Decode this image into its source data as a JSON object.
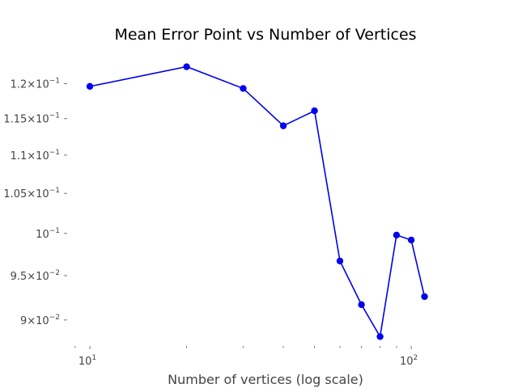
{
  "chart_data": {
    "type": "line",
    "title": "Mean Error Point vs Number of Vertices",
    "xlabel": "Number of vertices (log scale)",
    "ylabel": "",
    "xscale": "log",
    "yscale": "log",
    "xlim": [
      8.5,
      150
    ],
    "ylim": [
      0.0872,
      0.125
    ],
    "grid": false,
    "color": "#0000ee",
    "x": [
      10,
      20,
      30,
      40,
      50,
      60,
      70,
      80,
      90,
      100,
      110
    ],
    "y": [
      0.1196,
      0.1225,
      0.1193,
      0.114,
      0.1161,
      0.0967,
      0.0917,
      0.0882,
      0.0998,
      0.0992,
      0.0926
    ],
    "x_major_ticks": [
      {
        "value": 10,
        "base": "10",
        "exp": "1"
      },
      {
        "value": 100,
        "base": "10",
        "exp": "2"
      }
    ],
    "x_minor_ticks": [
      9,
      20,
      30,
      40,
      50,
      60,
      70,
      80,
      90
    ],
    "y_ticks": [
      {
        "value": 0.09,
        "mant": "9",
        "exp": "−2"
      },
      {
        "value": 0.095,
        "mant": "9.5",
        "exp": "−2"
      },
      {
        "value": 0.1,
        "mant": "",
        "exp": "−1"
      },
      {
        "value": 0.105,
        "mant": "1.05",
        "exp": "−1"
      },
      {
        "value": 0.11,
        "mant": "1.1",
        "exp": "−1"
      },
      {
        "value": 0.115,
        "mant": "1.15",
        "exp": "−1"
      },
      {
        "value": 0.12,
        "mant": "1.2",
        "exp": "−1"
      }
    ]
  }
}
